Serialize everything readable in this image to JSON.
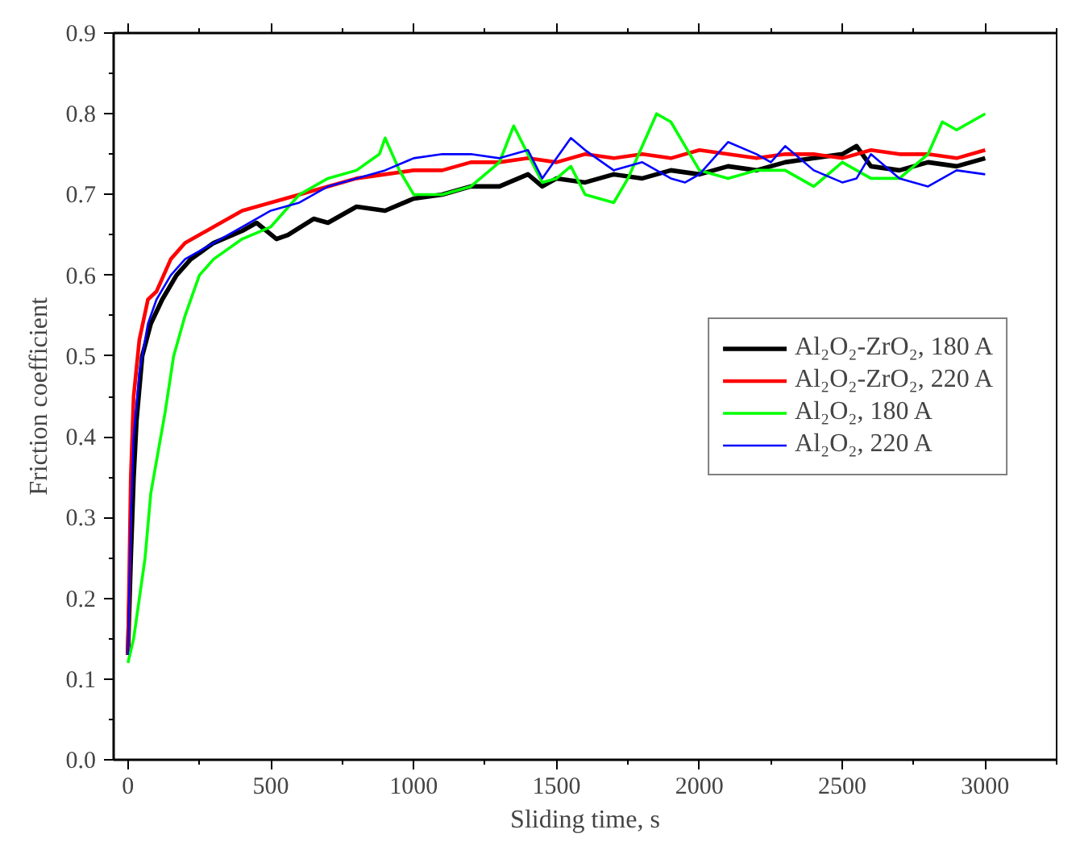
{
  "chart_data": {
    "type": "line",
    "xlabel": "Sliding time, s",
    "ylabel": "Friction coefficient",
    "xlim": [
      -50,
      3250
    ],
    "ylim": [
      0,
      0.9
    ],
    "xticks": [
      0,
      500,
      1000,
      1500,
      2000,
      2500,
      3000
    ],
    "yticks": [
      {
        "value": 0,
        "label": "0.0"
      },
      0.1,
      0.2,
      0.3,
      0.4,
      0.5,
      0.6,
      0.7,
      0.8,
      0.9
    ],
    "grid": false,
    "legend": "right",
    "line_style": "solid",
    "marker": "none",
    "series": [
      {
        "name": "Al₂O₂-ZrO₂, 180 A",
        "color": "#000000",
        "x": [
          0,
          10,
          20,
          30,
          50,
          80,
          120,
          170,
          220,
          300,
          400,
          450,
          520,
          560,
          650,
          700,
          800,
          900,
          1000,
          1100,
          1200,
          1300,
          1400,
          1450,
          1500,
          1600,
          1700,
          1800,
          1900,
          2000,
          2100,
          2200,
          2300,
          2400,
          2500,
          2550,
          2600,
          2700,
          2800,
          2900,
          3000
        ],
        "values": [
          0.13,
          0.25,
          0.35,
          0.42,
          0.5,
          0.54,
          0.57,
          0.6,
          0.62,
          0.64,
          0.655,
          0.665,
          0.645,
          0.65,
          0.67,
          0.665,
          0.685,
          0.68,
          0.695,
          0.7,
          0.71,
          0.71,
          0.725,
          0.71,
          0.72,
          0.715,
          0.725,
          0.72,
          0.73,
          0.725,
          0.735,
          0.73,
          0.74,
          0.745,
          0.75,
          0.76,
          0.735,
          0.73,
          0.74,
          0.735,
          0.745
        ]
      },
      {
        "name": "Al₂O₂-ZrO₂, 220 A",
        "color": "#ff0000",
        "x": [
          0,
          10,
          20,
          40,
          70,
          100,
          150,
          200,
          300,
          400,
          500,
          600,
          700,
          800,
          900,
          1000,
          1100,
          1200,
          1300,
          1400,
          1500,
          1600,
          1700,
          1800,
          1900,
          2000,
          2100,
          2200,
          2300,
          2400,
          2500,
          2600,
          2700,
          2800,
          2900,
          3000
        ],
        "values": [
          0.13,
          0.35,
          0.45,
          0.52,
          0.57,
          0.58,
          0.62,
          0.64,
          0.66,
          0.68,
          0.69,
          0.7,
          0.71,
          0.72,
          0.725,
          0.73,
          0.73,
          0.74,
          0.74,
          0.745,
          0.74,
          0.75,
          0.745,
          0.75,
          0.745,
          0.755,
          0.75,
          0.745,
          0.75,
          0.75,
          0.745,
          0.755,
          0.75,
          0.75,
          0.745,
          0.755
        ]
      },
      {
        "name": "Al₂O₂, 180 A",
        "color": "#00ff00",
        "x": [
          0,
          20,
          40,
          60,
          80,
          100,
          130,
          160,
          200,
          250,
          300,
          400,
          500,
          600,
          700,
          800,
          880,
          900,
          950,
          1000,
          1100,
          1200,
          1300,
          1350,
          1400,
          1450,
          1500,
          1550,
          1600,
          1700,
          1750,
          1800,
          1850,
          1900,
          1950,
          2000,
          2100,
          2200,
          2300,
          2400,
          2500,
          2600,
          2700,
          2800,
          2850,
          2900,
          3000
        ],
        "values": [
          0.12,
          0.15,
          0.2,
          0.25,
          0.33,
          0.37,
          0.43,
          0.5,
          0.55,
          0.6,
          0.62,
          0.645,
          0.66,
          0.7,
          0.72,
          0.73,
          0.75,
          0.77,
          0.73,
          0.7,
          0.7,
          0.71,
          0.74,
          0.785,
          0.75,
          0.715,
          0.72,
          0.735,
          0.7,
          0.69,
          0.72,
          0.76,
          0.8,
          0.79,
          0.76,
          0.73,
          0.72,
          0.73,
          0.73,
          0.71,
          0.74,
          0.72,
          0.72,
          0.75,
          0.79,
          0.78,
          0.8
        ]
      },
      {
        "name": "Al₂O₂, 220 A",
        "color": "#0000ff",
        "x": [
          0,
          10,
          20,
          40,
          70,
          100,
          150,
          200,
          300,
          400,
          500,
          600,
          700,
          800,
          900,
          1000,
          1100,
          1200,
          1300,
          1400,
          1450,
          1500,
          1550,
          1600,
          1700,
          1800,
          1900,
          1950,
          2000,
          2100,
          2200,
          2250,
          2300,
          2400,
          2500,
          2550,
          2600,
          2700,
          2800,
          2900,
          3000
        ],
        "values": [
          0.13,
          0.3,
          0.4,
          0.48,
          0.54,
          0.57,
          0.6,
          0.62,
          0.64,
          0.66,
          0.68,
          0.69,
          0.71,
          0.72,
          0.73,
          0.745,
          0.75,
          0.75,
          0.745,
          0.755,
          0.72,
          0.745,
          0.77,
          0.755,
          0.73,
          0.74,
          0.72,
          0.715,
          0.725,
          0.765,
          0.75,
          0.74,
          0.76,
          0.73,
          0.715,
          0.72,
          0.75,
          0.72,
          0.71,
          0.73,
          0.725
        ]
      }
    ]
  }
}
